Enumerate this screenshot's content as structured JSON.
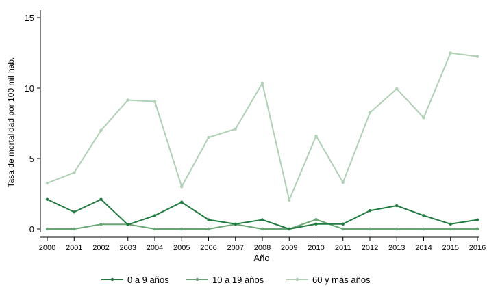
{
  "chart_data": {
    "type": "line",
    "xlabel": "Año",
    "ylabel": "Tasa de mortalidad por 100 mil hab.",
    "x": [
      2000,
      2001,
      2002,
      2003,
      2004,
      2005,
      2006,
      2007,
      2008,
      2009,
      2010,
      2011,
      2012,
      2013,
      2014,
      2015,
      2016
    ],
    "xticks": [
      "2000",
      "2001",
      "2002",
      "2003",
      "2004",
      "2005",
      "2006",
      "2007",
      "2008",
      "2009",
      "2010",
      "2011",
      "2012",
      "2013",
      "2014",
      "2015",
      "2016"
    ],
    "yticks": [
      "0",
      "5",
      "10",
      "15"
    ],
    "ytick_values": [
      0,
      5,
      10,
      15
    ],
    "ylim": [
      0,
      15
    ],
    "grid": "none",
    "legend_position": "bottom",
    "series": [
      {
        "name": "0 a 9 años",
        "color": "#1e7b3e",
        "values": [
          2.1,
          1.2,
          2.1,
          0.3,
          0.95,
          1.9,
          0.65,
          0.35,
          0.65,
          0.0,
          0.35,
          0.35,
          1.3,
          1.65,
          0.95,
          0.35,
          0.65
        ]
      },
      {
        "name": "10 a 19 años",
        "color": "#67a672",
        "values": [
          0.0,
          0.0,
          0.33,
          0.33,
          0.0,
          0.0,
          0.0,
          0.33,
          0.0,
          0.0,
          0.67,
          0.0,
          0.0,
          0.0,
          0.0,
          0.0,
          0.0
        ]
      },
      {
        "name": "60 y más años",
        "color": "#aed0b3",
        "values": [
          3.25,
          4.0,
          7.0,
          9.15,
          9.05,
          3.0,
          6.5,
          7.1,
          10.35,
          2.05,
          6.6,
          3.3,
          8.25,
          9.95,
          7.9,
          12.5,
          12.25
        ]
      }
    ]
  }
}
